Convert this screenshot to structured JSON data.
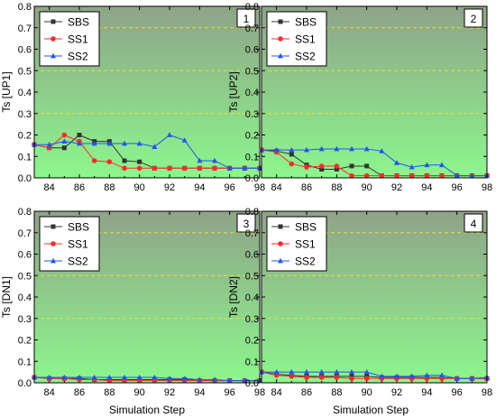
{
  "x_axis_label": "Simulation Step",
  "colors": {
    "SBS": "#333333",
    "SS1": "#ff2a2a",
    "SS2": "#2255ee",
    "ref_line": "#e8e03a",
    "bg_top": "#8fa389",
    "bg_bottom": "#8cf78c"
  },
  "chart_data": [
    {
      "type": "line",
      "panel_label": "1",
      "ylabel": "Ts [UP1]",
      "xlabel": "",
      "x": [
        83,
        84,
        85,
        86,
        87,
        88,
        89,
        90,
        91,
        92,
        93,
        94,
        95,
        96,
        97,
        98
      ],
      "xlim": [
        83,
        98
      ],
      "ylim": [
        0,
        0.8
      ],
      "xticks": [
        84,
        86,
        88,
        90,
        92,
        94,
        96,
        98
      ],
      "yticks": [
        0.0,
        0.1,
        0.2,
        0.3,
        0.4,
        0.5,
        0.6,
        0.7,
        0.8
      ],
      "reference_lines": [
        0.3,
        0.5,
        0.7
      ],
      "legend_position": "top-left",
      "series": [
        {
          "name": "SBS",
          "marker": "square",
          "values": [
            0.155,
            0.14,
            0.14,
            0.2,
            0.17,
            0.17,
            0.08,
            0.075,
            0.045,
            0.045,
            0.045,
            0.045,
            0.045,
            0.045,
            0.045,
            0.045
          ]
        },
        {
          "name": "SS1",
          "marker": "circle",
          "values": [
            0.155,
            0.14,
            0.2,
            0.17,
            0.08,
            0.075,
            0.045,
            0.045,
            0.045,
            0.045,
            0.045,
            0.045,
            0.045,
            0.045,
            0.045,
            0.045
          ]
        },
        {
          "name": "SS2",
          "marker": "triangle",
          "values": [
            0.155,
            0.155,
            0.17,
            0.16,
            0.16,
            0.16,
            0.16,
            0.16,
            0.145,
            0.2,
            0.175,
            0.08,
            0.08,
            0.045,
            0.045,
            0.045
          ]
        }
      ]
    },
    {
      "type": "line",
      "panel_label": "2",
      "ylabel": "Ts [UP2]",
      "xlabel": "",
      "x": [
        83,
        84,
        85,
        86,
        87,
        88,
        89,
        90,
        91,
        92,
        93,
        94,
        95,
        96,
        97,
        98
      ],
      "xlim": [
        83,
        98
      ],
      "ylim": [
        0,
        0.8
      ],
      "xticks": [
        84,
        86,
        88,
        90,
        92,
        94,
        96,
        98
      ],
      "yticks": [
        0.0,
        0.1,
        0.2,
        0.3,
        0.4,
        0.5,
        0.6,
        0.7,
        0.8
      ],
      "reference_lines": [
        0.3,
        0.5,
        0.7
      ],
      "legend_position": "top-left",
      "series": [
        {
          "name": "SBS",
          "marker": "square",
          "values": [
            0.13,
            0.125,
            0.11,
            0.06,
            0.04,
            0.04,
            0.055,
            0.055,
            0.01,
            0.01,
            0.01,
            0.01,
            0.01,
            0.01,
            0.01,
            0.01
          ]
        },
        {
          "name": "SS1",
          "marker": "circle",
          "values": [
            0.13,
            0.12,
            0.065,
            0.05,
            0.055,
            0.055,
            0.01,
            0.01,
            0.01,
            0.01,
            0.01,
            0.01,
            0.01,
            0.01,
            0.01,
            0.01
          ]
        },
        {
          "name": "SS2",
          "marker": "triangle",
          "values": [
            0.13,
            0.13,
            0.13,
            0.13,
            0.135,
            0.135,
            0.135,
            0.135,
            0.125,
            0.07,
            0.05,
            0.06,
            0.06,
            0.01,
            0.01,
            0.01
          ]
        }
      ]
    },
    {
      "type": "line",
      "panel_label": "3",
      "ylabel": "Ts [DN1]",
      "xlabel": "Simulation Step",
      "x": [
        83,
        84,
        85,
        86,
        87,
        88,
        89,
        90,
        91,
        92,
        93,
        94,
        95,
        96,
        97,
        98
      ],
      "xlim": [
        83,
        98
      ],
      "ylim": [
        0,
        0.8
      ],
      "xticks": [
        84,
        86,
        88,
        90,
        92,
        94,
        96,
        98
      ],
      "yticks": [
        0.0,
        0.1,
        0.2,
        0.3,
        0.4,
        0.5,
        0.6,
        0.7,
        0.8
      ],
      "reference_lines": [
        0.3,
        0.5,
        0.7
      ],
      "legend_position": "top-left",
      "series": [
        {
          "name": "SBS",
          "marker": "square",
          "values": [
            0.025,
            0.02,
            0.02,
            0.02,
            0.015,
            0.015,
            0.015,
            0.015,
            0.015,
            0.015,
            0.015,
            0.01,
            0.01,
            0.01,
            0.01,
            0.01
          ]
        },
        {
          "name": "SS1",
          "marker": "circle",
          "values": [
            0.025,
            0.02,
            0.02,
            0.015,
            0.015,
            0.01,
            0.01,
            0.01,
            0.01,
            0.01,
            0.01,
            0.01,
            0.01,
            0.01,
            0.01,
            0.01
          ]
        },
        {
          "name": "SS2",
          "marker": "triangle",
          "values": [
            0.025,
            0.025,
            0.025,
            0.025,
            0.025,
            0.025,
            0.025,
            0.025,
            0.025,
            0.02,
            0.02,
            0.015,
            0.015,
            0.01,
            0.01,
            0.01
          ]
        }
      ]
    },
    {
      "type": "line",
      "panel_label": "4",
      "ylabel": "Ts [DN2]",
      "xlabel": "Simulation Step",
      "x": [
        83,
        84,
        85,
        86,
        87,
        88,
        89,
        90,
        91,
        92,
        93,
        94,
        95,
        96,
        97,
        98
      ],
      "xlim": [
        83,
        98
      ],
      "ylim": [
        0,
        0.8
      ],
      "xticks": [
        84,
        86,
        88,
        90,
        92,
        94,
        96,
        98
      ],
      "yticks": [
        0.0,
        0.1,
        0.2,
        0.3,
        0.4,
        0.5,
        0.6,
        0.7,
        0.8
      ],
      "reference_lines": [
        0.3,
        0.5,
        0.7
      ],
      "legend_position": "top-left",
      "series": [
        {
          "name": "SBS",
          "marker": "square",
          "values": [
            0.05,
            0.04,
            0.035,
            0.03,
            0.03,
            0.03,
            0.03,
            0.03,
            0.025,
            0.025,
            0.025,
            0.025,
            0.025,
            0.02,
            0.02,
            0.02
          ]
        },
        {
          "name": "SS1",
          "marker": "circle",
          "values": [
            0.05,
            0.035,
            0.03,
            0.025,
            0.025,
            0.025,
            0.02,
            0.02,
            0.02,
            0.02,
            0.02,
            0.02,
            0.02,
            0.02,
            0.02,
            0.02
          ]
        },
        {
          "name": "SS2",
          "marker": "triangle",
          "values": [
            0.05,
            0.05,
            0.05,
            0.05,
            0.05,
            0.05,
            0.05,
            0.05,
            0.03,
            0.03,
            0.03,
            0.035,
            0.035,
            0.02,
            0.02,
            0.025
          ]
        }
      ]
    }
  ]
}
